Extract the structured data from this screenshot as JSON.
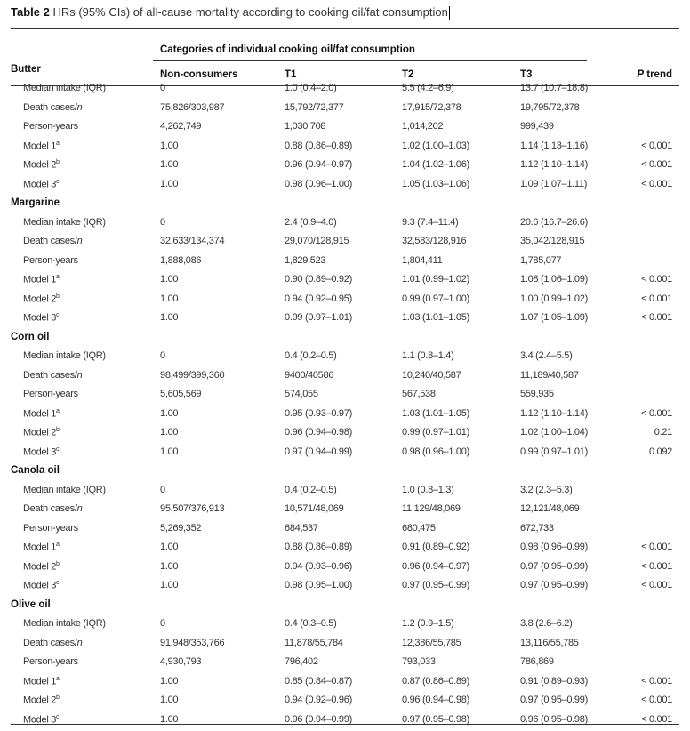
{
  "title": {
    "label": "Table 2",
    "text": "HRs (95% CIs) of all-cause mortality according to cooking oil/fat consumption"
  },
  "header": {
    "span": "Categories of individual cooking oil/fat consumption",
    "columns": [
      "Non-consumers",
      "T1",
      "T2",
      "T3"
    ],
    "p_trend_italic": "P",
    "p_trend": " trend"
  },
  "groups": [
    {
      "name": "Butter",
      "rows": [
        [
          "Median intake (IQR)",
          "",
          "0",
          "1.0 (0.4–2.0)",
          "5.5 (4.2–6.9)",
          "13.7 (10.7–18.8)",
          ""
        ],
        [
          "Death cases/",
          "n",
          "75,826/303,987",
          "15,792/72,377",
          "17,915/72,378",
          "19,795/72,378",
          ""
        ],
        [
          "Person-years",
          "",
          "4,262,749",
          "1,030,708",
          "1,014,202",
          "999,439",
          ""
        ],
        [
          "Model 1",
          "a",
          "1.00",
          "0.88 (0.86–0.89)",
          "1.02 (1.00–1.03)",
          "1.14 (1.13–1.16)",
          "< 0.001"
        ],
        [
          "Model 2",
          "b",
          "1.00",
          "0.96 (0.94–0.97)",
          "1.04 (1.02–1.06)",
          "1.12 (1.10–1.14)",
          "< 0.001"
        ],
        [
          "Model 3",
          "c",
          "1.00",
          "0.98 (0.96–1.00)",
          "1.05 (1.03–1.06)",
          "1.09 (1.07–1.11)",
          "< 0.001"
        ]
      ]
    },
    {
      "name": "Margarine",
      "rows": [
        [
          "Median intake (IQR)",
          "",
          "0",
          "2.4 (0.9–4.0)",
          "9.3 (7.4–11.4)",
          "20.6 (16.7–26.6)",
          ""
        ],
        [
          "Death cases/",
          "n",
          "32,633/134,374",
          "29,070/128,915",
          "32,583/128,916",
          "35,042/128,915",
          ""
        ],
        [
          "Person-years",
          "",
          "1,888,086",
          "1,829,523",
          "1,804,411",
          "1,785,077",
          ""
        ],
        [
          "Model 1",
          "a",
          "1.00",
          "0.90 (0.89–0.92)",
          "1.01 (0.99–1.02)",
          "1.08 (1.06–1.09)",
          "< 0.001"
        ],
        [
          "Model 2",
          "b",
          "1.00",
          "0.94 (0.92–0.95)",
          "0.99 (0.97–1.00)",
          "1.00 (0.99–1.02)",
          "< 0.001"
        ],
        [
          "Model 3",
          "c",
          "1.00",
          "0.99 (0.97–1.01)",
          "1.03 (1.01–1.05)",
          "1.07 (1.05–1.09)",
          "< 0.001"
        ]
      ]
    },
    {
      "name": "Corn oil",
      "rows": [
        [
          "Median intake (IQR)",
          "",
          "0",
          "0.4 (0.2–0.5)",
          "1.1 (0.8–1.4)",
          "3.4 (2.4–5.5)",
          ""
        ],
        [
          "Death cases/",
          "n",
          "98,499/399,360",
          "9400/40586",
          "10,240/40,587",
          "11,189/40,587",
          ""
        ],
        [
          "Person-years",
          "",
          "5,605,569",
          "574,055",
          "567,538",
          "559,935",
          ""
        ],
        [
          "Model 1",
          "a",
          "1.00",
          "0.95 (0.93–0.97)",
          "1.03 (1.01–1.05)",
          "1.12 (1.10–1.14)",
          "< 0.001"
        ],
        [
          "Model 2",
          "b",
          "1.00",
          "0.96 (0.94–0.98)",
          "0.99 (0.97–1.01)",
          "1.02 (1.00–1.04)",
          "0.21"
        ],
        [
          "Model 3",
          "c",
          "1.00",
          "0.97 (0.94–0.99)",
          "0.98 (0.96–1.00)",
          "0.99 (0.97–1.01)",
          "0.092"
        ]
      ]
    },
    {
      "name": "Canola oil",
      "rows": [
        [
          "Median intake (IQR)",
          "",
          "0",
          "0.4 (0.2–0.5)",
          "1.0 (0.8–1.3)",
          "3.2 (2.3–5.3)",
          ""
        ],
        [
          "Death cases/",
          "n",
          "95,507/376,913",
          "10,571/48,069",
          "11,129/48,069",
          "12,121/48,069",
          ""
        ],
        [
          "Person-years",
          "",
          "5,269,352",
          "684,537",
          "680,475",
          "672,733",
          ""
        ],
        [
          "Model 1",
          "a",
          "1.00",
          "0.88 (0.86–0.89)",
          "0.91 (0.89–0.92)",
          "0.98 (0.96–0.99)",
          "< 0.001"
        ],
        [
          "Model 2",
          "b",
          "1.00",
          "0.94 (0.93–0.96)",
          "0.96 (0.94–0.97)",
          "0.97 (0.95–0.99)",
          "< 0.001"
        ],
        [
          "Model 3",
          "c",
          "1.00",
          "0.98 (0.95–1.00)",
          "0.97 (0.95–0.99)",
          "0.97 (0.95–0.99)",
          "< 0.001"
        ]
      ]
    },
    {
      "name": "Olive oil",
      "rows": [
        [
          "Median intake (IQR)",
          "",
          "0",
          "0.4 (0.3–0.5)",
          "1.2 (0.9–1.5)",
          "3.8 (2.6–6.2)",
          ""
        ],
        [
          "Death cases/",
          "n",
          "91,948/353,766",
          "11,878/55,784",
          "12,386/55,785",
          "13,116/55,785",
          ""
        ],
        [
          "Person-years",
          "",
          "4,930,793",
          "796,402",
          "793,033",
          "786,869",
          ""
        ],
        [
          "Model 1",
          "a",
          "1.00",
          "0.85 (0.84–0.87)",
          "0.87 (0.86–0.89)",
          "0.91 (0.89–0.93)",
          "< 0.001"
        ],
        [
          "Model 2",
          "b",
          "1.00",
          "0.94 (0.92–0.96)",
          "0.96 (0.94–0.98)",
          "0.97 (0.95–0.99)",
          "< 0.001"
        ],
        [
          "Model 3",
          "c",
          "1.00",
          "0.96 (0.94–0.99)",
          "0.97 (0.95–0.98)",
          "0.96 (0.95–0.98)",
          "< 0.001"
        ]
      ]
    }
  ]
}
